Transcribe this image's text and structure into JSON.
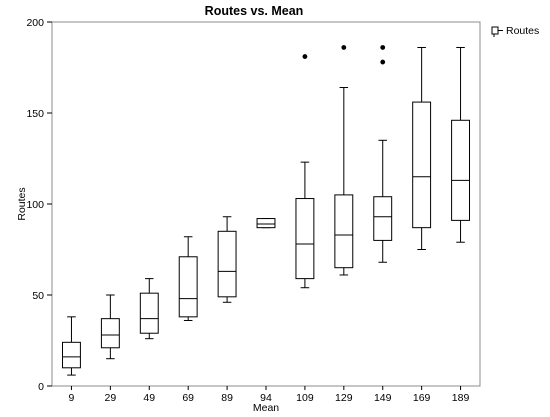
{
  "chart_data": {
    "type": "boxplot",
    "title": "Routes vs. Mean",
    "xlabel": "Mean",
    "ylabel": "Routes",
    "ylim": [
      0,
      200
    ],
    "yticks": [
      0,
      50,
      100,
      150,
      200
    ],
    "grid": false,
    "legend": {
      "position": "top-right",
      "entries": [
        "Routes"
      ]
    },
    "categories": [
      "9",
      "29",
      "49",
      "69",
      "89",
      "94",
      "109",
      "129",
      "149",
      "169",
      "189"
    ],
    "boxes": [
      {
        "category": "9",
        "min": 6,
        "q1": 10,
        "median": 16,
        "q3": 24,
        "max": 38,
        "outliers": []
      },
      {
        "category": "29",
        "min": 15,
        "q1": 21,
        "median": 28,
        "q3": 37,
        "max": 50,
        "outliers": []
      },
      {
        "category": "49",
        "min": 26,
        "q1": 29,
        "median": 37,
        "q3": 51,
        "max": 59,
        "outliers": []
      },
      {
        "category": "69",
        "min": 36,
        "q1": 38,
        "median": 48,
        "q3": 71,
        "max": 82,
        "outliers": []
      },
      {
        "category": "89",
        "min": 46,
        "q1": 49,
        "median": 63,
        "q3": 85,
        "max": 93,
        "outliers": []
      },
      {
        "category": "94",
        "min": 87,
        "q1": 87,
        "median": 89,
        "q3": 92,
        "max": 92,
        "outliers": []
      },
      {
        "category": "109",
        "min": 54,
        "q1": 59,
        "median": 78,
        "q3": 103,
        "max": 123,
        "outliers": [
          181
        ]
      },
      {
        "category": "129",
        "min": 61,
        "q1": 65,
        "median": 83,
        "q3": 105,
        "max": 164,
        "outliers": [
          186
        ]
      },
      {
        "category": "149",
        "min": 68,
        "q1": 80,
        "median": 93,
        "q3": 104,
        "max": 135,
        "outliers": [
          186,
          178
        ]
      },
      {
        "category": "169",
        "min": 75,
        "q1": 87,
        "median": 115,
        "q3": 156,
        "max": 186,
        "outliers": []
      },
      {
        "category": "189",
        "min": 79,
        "q1": 91,
        "median": 113,
        "q3": 146,
        "max": 186,
        "outliers": []
      }
    ]
  }
}
